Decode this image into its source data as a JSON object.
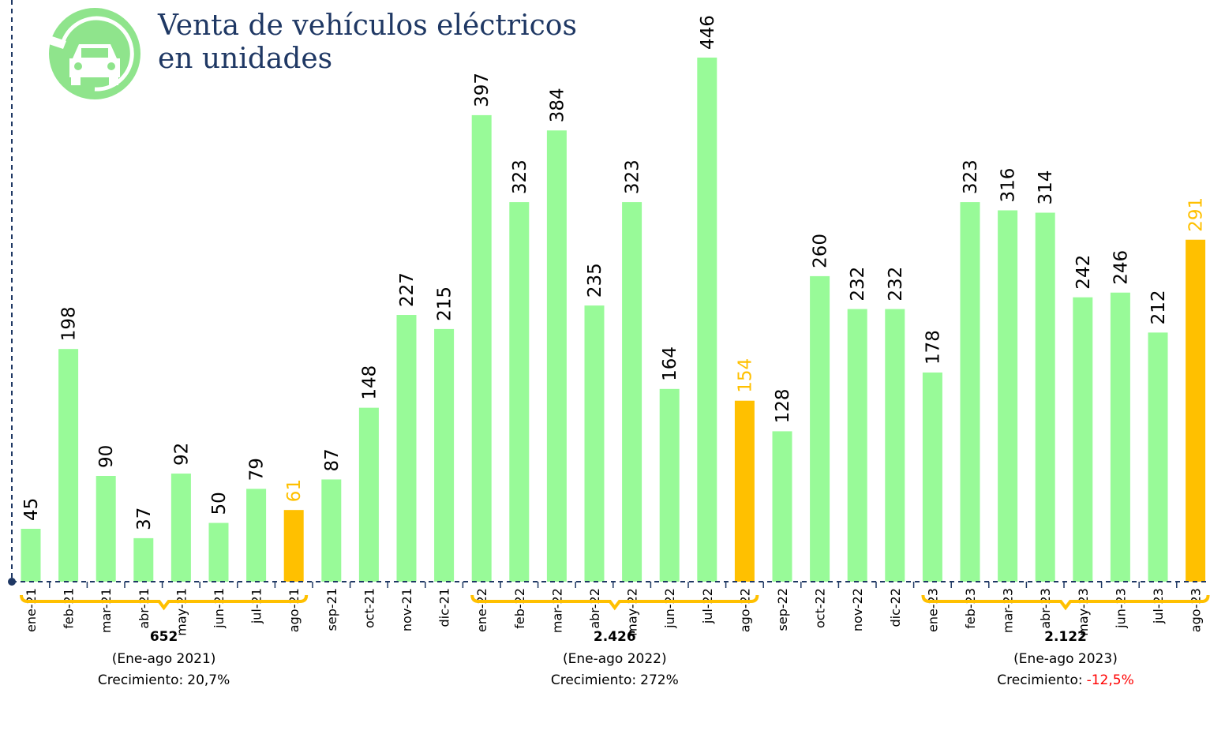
{
  "chart_data": {
    "type": "bar",
    "title_lines": [
      "Venta de vehículos eléctricos",
      "en unidades"
    ],
    "categories": [
      "ene-21",
      "feb-21",
      "mar-21",
      "abr-21",
      "may-21",
      "jun-21",
      "jul-21",
      "ago-21",
      "sep-21",
      "oct-21",
      "nov-21",
      "dic-21",
      "ene-22",
      "feb-22",
      "mar-22",
      "abr-22",
      "may-22",
      "jun-22",
      "jul-22",
      "ago-22",
      "sep-22",
      "oct-22",
      "nov-22",
      "dic-22",
      "ene-23",
      "feb-23",
      "mar-23",
      "abr-23",
      "may-23",
      "jun-23",
      "jul-23",
      "ago-23"
    ],
    "values": [
      45,
      198,
      90,
      37,
      92,
      50,
      79,
      61,
      87,
      148,
      227,
      215,
      397,
      323,
      384,
      235,
      323,
      164,
      446,
      154,
      128,
      260,
      232,
      232,
      178,
      323,
      316,
      314,
      242,
      246,
      212,
      291
    ],
    "color": "#98fa98",
    "colors": [
      "#98fa98",
      "#98fa98",
      "#98fa98",
      "#98fa98",
      "#98fa98",
      "#98fa98",
      "#98fa98",
      "#ffc000",
      "#98fa98",
      "#98fa98",
      "#98fa98",
      "#98fa98",
      "#98fa98",
      "#98fa98",
      "#98fa98",
      "#98fa98",
      "#98fa98",
      "#98fa98",
      "#98fa98",
      "#ffc000",
      "#98fa98",
      "#98fa98",
      "#98fa98",
      "#98fa98",
      "#98fa98",
      "#98fa98",
      "#98fa98",
      "#98fa98",
      "#98fa98",
      "#98fa98",
      "#98fa98",
      "#ffc000"
    ],
    "ylim": [
      0,
      495
    ],
    "annotations": [
      {
        "from": "ene-21",
        "to": "ago-21",
        "total": "652",
        "period": "(Ene-ago 2021)",
        "growth_label": "Crecimiento:",
        "growth": "20,7%",
        "growth_color": "#000000"
      },
      {
        "from": "ene-22",
        "to": "ago-22",
        "total": "2.426",
        "period": "(Ene-ago 2022)",
        "growth_label": "Crecimiento:",
        "growth": "272%",
        "growth_color": "#000000"
      },
      {
        "from": "ene-23",
        "to": "ago-23",
        "total": "2.122",
        "period": "(Ene-ago 2023)",
        "growth_label": "Crecimiento:",
        "growth": "-12,5%",
        "growth_color": "#ff0000"
      }
    ]
  }
}
